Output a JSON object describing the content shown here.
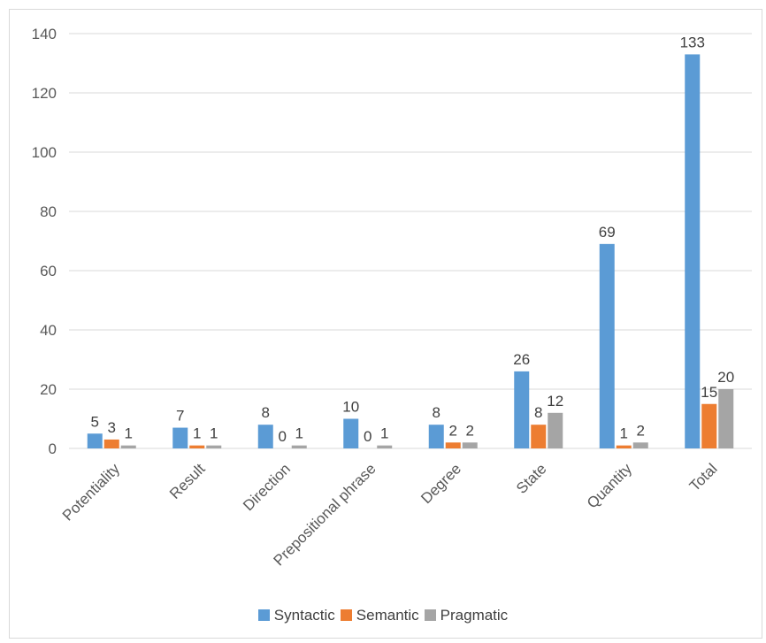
{
  "chart_data": {
    "type": "bar",
    "categories": [
      "Potentiality",
      "Result",
      "Direction",
      "Prepositional phrase",
      "Degree",
      "State",
      "Quantity",
      "Total"
    ],
    "series": [
      {
        "name": "Syntactic",
        "color": "#5b9bd5",
        "values": [
          5,
          7,
          8,
          10,
          8,
          26,
          69,
          133
        ]
      },
      {
        "name": "Semantic",
        "color": "#ed7d31",
        "values": [
          3,
          1,
          0,
          0,
          2,
          8,
          1,
          15
        ]
      },
      {
        "name": "Pragmatic",
        "color": "#a5a5a5",
        "values": [
          1,
          1,
          1,
          1,
          2,
          12,
          2,
          20
        ]
      }
    ],
    "ylim": [
      0,
      140
    ],
    "yticks": [
      0,
      20,
      40,
      60,
      80,
      100,
      120,
      140
    ],
    "grid": true,
    "legend_position": "bottom",
    "data_labels": true
  }
}
